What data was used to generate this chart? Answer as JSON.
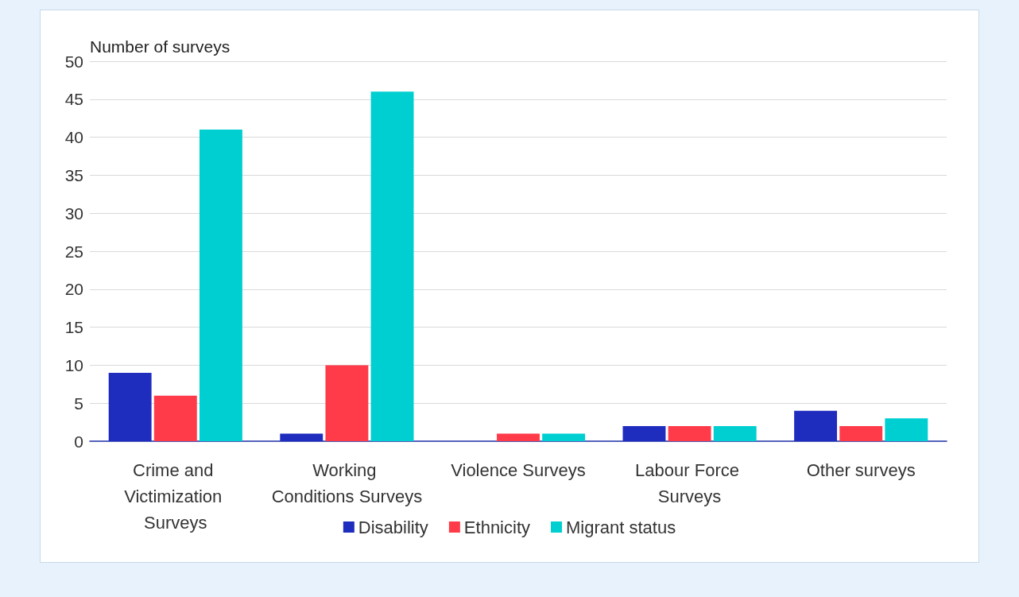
{
  "chart_data": {
    "type": "bar",
    "ylabel": "Number of surveys",
    "categories": [
      "Crime and Victimization Surveys",
      "Working Conditions Surveys",
      "Violence Surveys",
      "Labour Force Surveys",
      "Other surveys"
    ],
    "series": [
      {
        "name": "Disability",
        "color": "#1f2dbf",
        "values": [
          9,
          1,
          0,
          2,
          4
        ]
      },
      {
        "name": "Ethnicity",
        "color": "#ff3b4a",
        "values": [
          6,
          10,
          1,
          2,
          2
        ]
      },
      {
        "name": "Migrant status",
        "color": "#00cfd1",
        "values": [
          41,
          46,
          1,
          2,
          3
        ]
      }
    ],
    "ylim": [
      0,
      50
    ],
    "yticks": [
      0,
      5,
      10,
      15,
      20,
      25,
      30,
      35,
      40,
      45,
      50
    ],
    "grid": "y",
    "legend": "bottom"
  }
}
